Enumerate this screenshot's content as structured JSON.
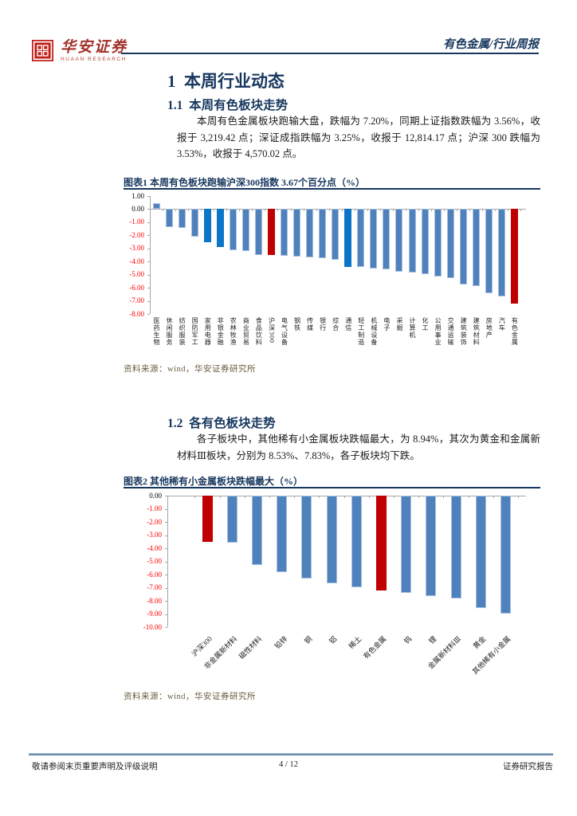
{
  "header": {
    "brand_cn": "华安证券",
    "brand_en": "HUAAN RESEARCH",
    "report_type": "有色金属/行业周报"
  },
  "sections": {
    "h1": "1  本周行业动态",
    "s11": {
      "heading": "1.1  本周有色板块走势",
      "paragraph": "本周有色金属板块跑输大盘，跌幅为 7.20%，同期上证指数跌幅为 3.56%，收报于 3,219.42 点；深证成指跌幅为 3.25%，收报于 12,814.17 点；沪深 300 跌幅为 3.53%，收报于 4,570.02 点。"
    },
    "s12": {
      "heading": "1.2  各有色板块走势",
      "paragraph": "各子板块中，其他稀有小金属板块跌幅最大，为 8.94%，其次为黄金和金属新材料Ⅲ板块，分别为 8.53%、7.83%，各子板块均下跌。"
    }
  },
  "figures": [
    {
      "title": "图表1 本周有色板块跑输沪深300指数 3.67个百分点（%）",
      "source": "资料来源：wind，华安证券研究所"
    },
    {
      "title": "图表2 其他稀有小金属板块跌幅最大（%）",
      "source": "资料来源：wind，华安证券研究所"
    }
  ],
  "footer": {
    "left": "敬请参阅末页重要声明及评级说明",
    "page": "4 / 12",
    "right": "证券研究报告"
  },
  "colors": {
    "heading_navy": "#17375E",
    "bar_blue": "#4F81BD",
    "bar_bright": "#0B76C8",
    "bar_red": "#C00000",
    "tick_negative": "#FF0000",
    "axis_gray": "#A6A6A6",
    "brand_red": "#A2322A"
  },
  "chart_data": [
    {
      "type": "bar",
      "title": "本周有色板块跑输沪深300指数3.67个百分点（%）",
      "xlabel": "",
      "ylabel": "",
      "ylim": [
        -8,
        1
      ],
      "ytick_step": 1,
      "grid": false,
      "legend": "none",
      "yticks": [
        "1.00",
        "0.00",
        "-1.00",
        "-2.00",
        "-3.00",
        "-4.00",
        "-5.00",
        "-6.00",
        "-7.00",
        "-8.00"
      ],
      "categories": [
        "医药生物",
        "休闲服务",
        "纺织服装",
        "国防军工",
        "家用电器",
        "非银金融",
        "农林牧渔",
        "商业贸易",
        "食品饮料",
        "沪深300",
        "电气设备",
        "钢铁",
        "传媒",
        "银行",
        "综合",
        "通信",
        "轻工制造",
        "机械设备",
        "电子",
        "采掘",
        "计算机",
        "化工",
        "公用事业",
        "交通运输",
        "建筑装饰",
        "建筑材料",
        "房地产",
        "汽车",
        "有色金属"
      ],
      "values": [
        0.45,
        -1.35,
        -1.45,
        -2.1,
        -2.5,
        -2.9,
        -3.15,
        -3.2,
        -3.5,
        -3.53,
        -3.58,
        -3.62,
        -3.66,
        -3.73,
        -3.87,
        -4.4,
        -4.44,
        -4.54,
        -4.6,
        -4.79,
        -4.83,
        -4.99,
        -5.15,
        -5.25,
        -5.76,
        -5.86,
        -6.42,
        -6.68,
        -7.2
      ],
      "bar_colors": [
        "blue",
        "blue",
        "blue",
        "blue",
        "bright",
        "bright",
        "blue",
        "blue",
        "blue",
        "red",
        "blue",
        "blue",
        "blue",
        "blue",
        "blue",
        "bright",
        "blue",
        "blue",
        "blue",
        "blue",
        "blue",
        "blue",
        "blue",
        "blue",
        "blue",
        "blue",
        "blue",
        "blue",
        "red"
      ]
    },
    {
      "type": "bar",
      "title": "其他稀有小金属板块跌幅最大（%）",
      "xlabel": "",
      "ylabel": "",
      "ylim": [
        -10,
        0
      ],
      "ytick_step": 1,
      "grid": false,
      "legend": "none",
      "yticks": [
        "0.00",
        "-1.00",
        "-2.00",
        "-3.00",
        "-4.00",
        "-5.00",
        "-6.00",
        "-7.00",
        "-8.00",
        "-9.00",
        "-10.00"
      ],
      "categories": [
        "沪深300",
        "非金属新材料",
        "磁性材料",
        "铅锌",
        "铜",
        "铝",
        "稀土",
        "有色金属",
        "钨",
        "锂",
        "金属新材料Ⅲ",
        "黄金",
        "其他稀有小金属"
      ],
      "values": [
        -3.53,
        -3.6,
        -5.29,
        -5.8,
        -6.3,
        -6.67,
        -6.97,
        -7.2,
        -7.37,
        -7.61,
        -7.83,
        -8.53,
        -8.94
      ],
      "bar_colors": [
        "red",
        "blue",
        "blue",
        "blue",
        "blue",
        "blue",
        "blue",
        "red",
        "blue",
        "blue",
        "blue",
        "blue",
        "blue"
      ]
    }
  ]
}
